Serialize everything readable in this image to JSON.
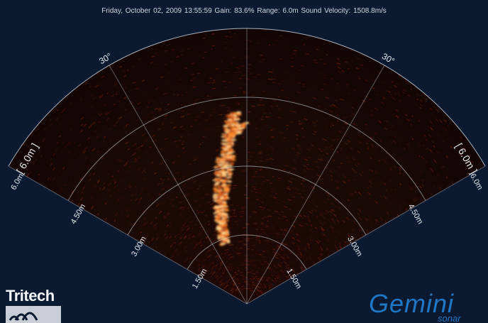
{
  "status": {
    "text": "Friday, October 02, 2009 13:55:59   Gain: 83.6%   Range: 6.0m   Sound Velocity: 1508.8m/s"
  },
  "sonar": {
    "range_label": "[ 6.0m ]",
    "angle_labels": [
      "30°",
      "30°"
    ],
    "ring_labels": [
      "1.50m",
      "3.00m",
      "4.50m",
      "6.0m"
    ],
    "colors": {
      "background": "#0b1a30",
      "fan": "#1a0806",
      "echo": "#ff8a2a",
      "grid": "#cfd8e0"
    }
  },
  "logos": {
    "tritech": "Tritech",
    "gemini": "Gemini",
    "gemini_sub": "sonar"
  }
}
